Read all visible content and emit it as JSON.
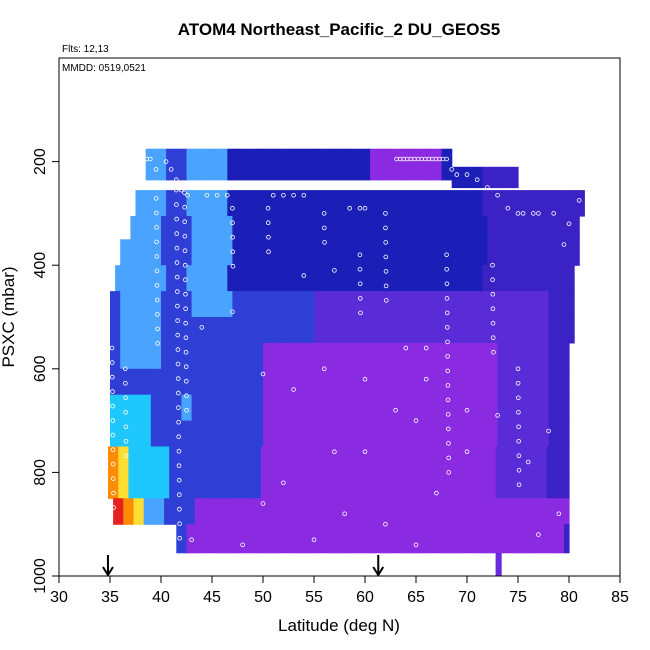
{
  "chart_data": {
    "type": "heatmap",
    "title": "ATOM4 Northeast_Pacific_2 DU_GEOS5",
    "annotations": [
      "Flts: 12,13",
      "MMDD: 0519,0521"
    ],
    "xlabel": "Latitude (deg N)",
    "ylabel": "PSXC (mbar)",
    "xlim": [
      30,
      85
    ],
    "ylim": [
      1000,
      0
    ],
    "xticks": [
      30,
      35,
      40,
      45,
      50,
      55,
      60,
      65,
      70,
      75,
      80,
      85
    ],
    "yticks": [
      200,
      400,
      600,
      800,
      1000
    ],
    "legend": "none",
    "grid": false,
    "arrows_latitude": [
      34.8,
      61.3
    ],
    "colors": {
      "dark_blue": "#1b1fb8",
      "blue": "#2f3fd6",
      "light_blue": "#4aa3ff",
      "cyan": "#1ec8ff",
      "violet": "#8a2be2",
      "yellow": "#ffdd33",
      "orange": "#ff8c00",
      "red": "#e52222",
      "track_points": "#ffffff"
    },
    "columns": [
      {
        "lat_range": [
          38.5,
          68.5
        ],
        "p_range": [
          175,
          235
        ]
      },
      {
        "lat_range": [
          68.5,
          75.0
        ],
        "p_range": [
          210,
          250
        ]
      },
      {
        "lat_range": [
          37.5,
          81.5
        ],
        "p_range": [
          255,
          305
        ]
      },
      {
        "lat_range": [
          37.0,
          81.0
        ],
        "p_range": [
          305,
          350
        ]
      },
      {
        "lat_range": [
          36.0,
          81.0
        ],
        "p_range": [
          350,
          400
        ]
      },
      {
        "lat_range": [
          35.5,
          80.5
        ],
        "p_range": [
          400,
          450
        ]
      },
      {
        "lat_range": [
          35.0,
          80.5
        ],
        "p_range": [
          450,
          500
        ]
      },
      {
        "lat_range": [
          35.0,
          80.5
        ],
        "p_range": [
          500,
          550
        ]
      },
      {
        "lat_range": [
          35.0,
          80.0
        ],
        "p_range": [
          550,
          600
        ]
      },
      {
        "lat_range": [
          35.0,
          80.0
        ],
        "p_range": [
          600,
          650
        ]
      },
      {
        "lat_range": [
          35.0,
          80.0
        ],
        "p_range": [
          650,
          700
        ]
      },
      {
        "lat_range": [
          35.0,
          80.0
        ],
        "p_range": [
          700,
          750
        ]
      },
      {
        "lat_range": [
          34.8,
          80.0
        ],
        "p_range": [
          750,
          800
        ]
      },
      {
        "lat_range": [
          34.8,
          80.0
        ],
        "p_range": [
          800,
          850
        ]
      },
      {
        "lat_range": [
          35.3,
          80.0
        ],
        "p_range": [
          850,
          900
        ]
      },
      {
        "lat_range": [
          41.5,
          80.0
        ],
        "p_range": [
          900,
          955
        ]
      }
    ]
  }
}
